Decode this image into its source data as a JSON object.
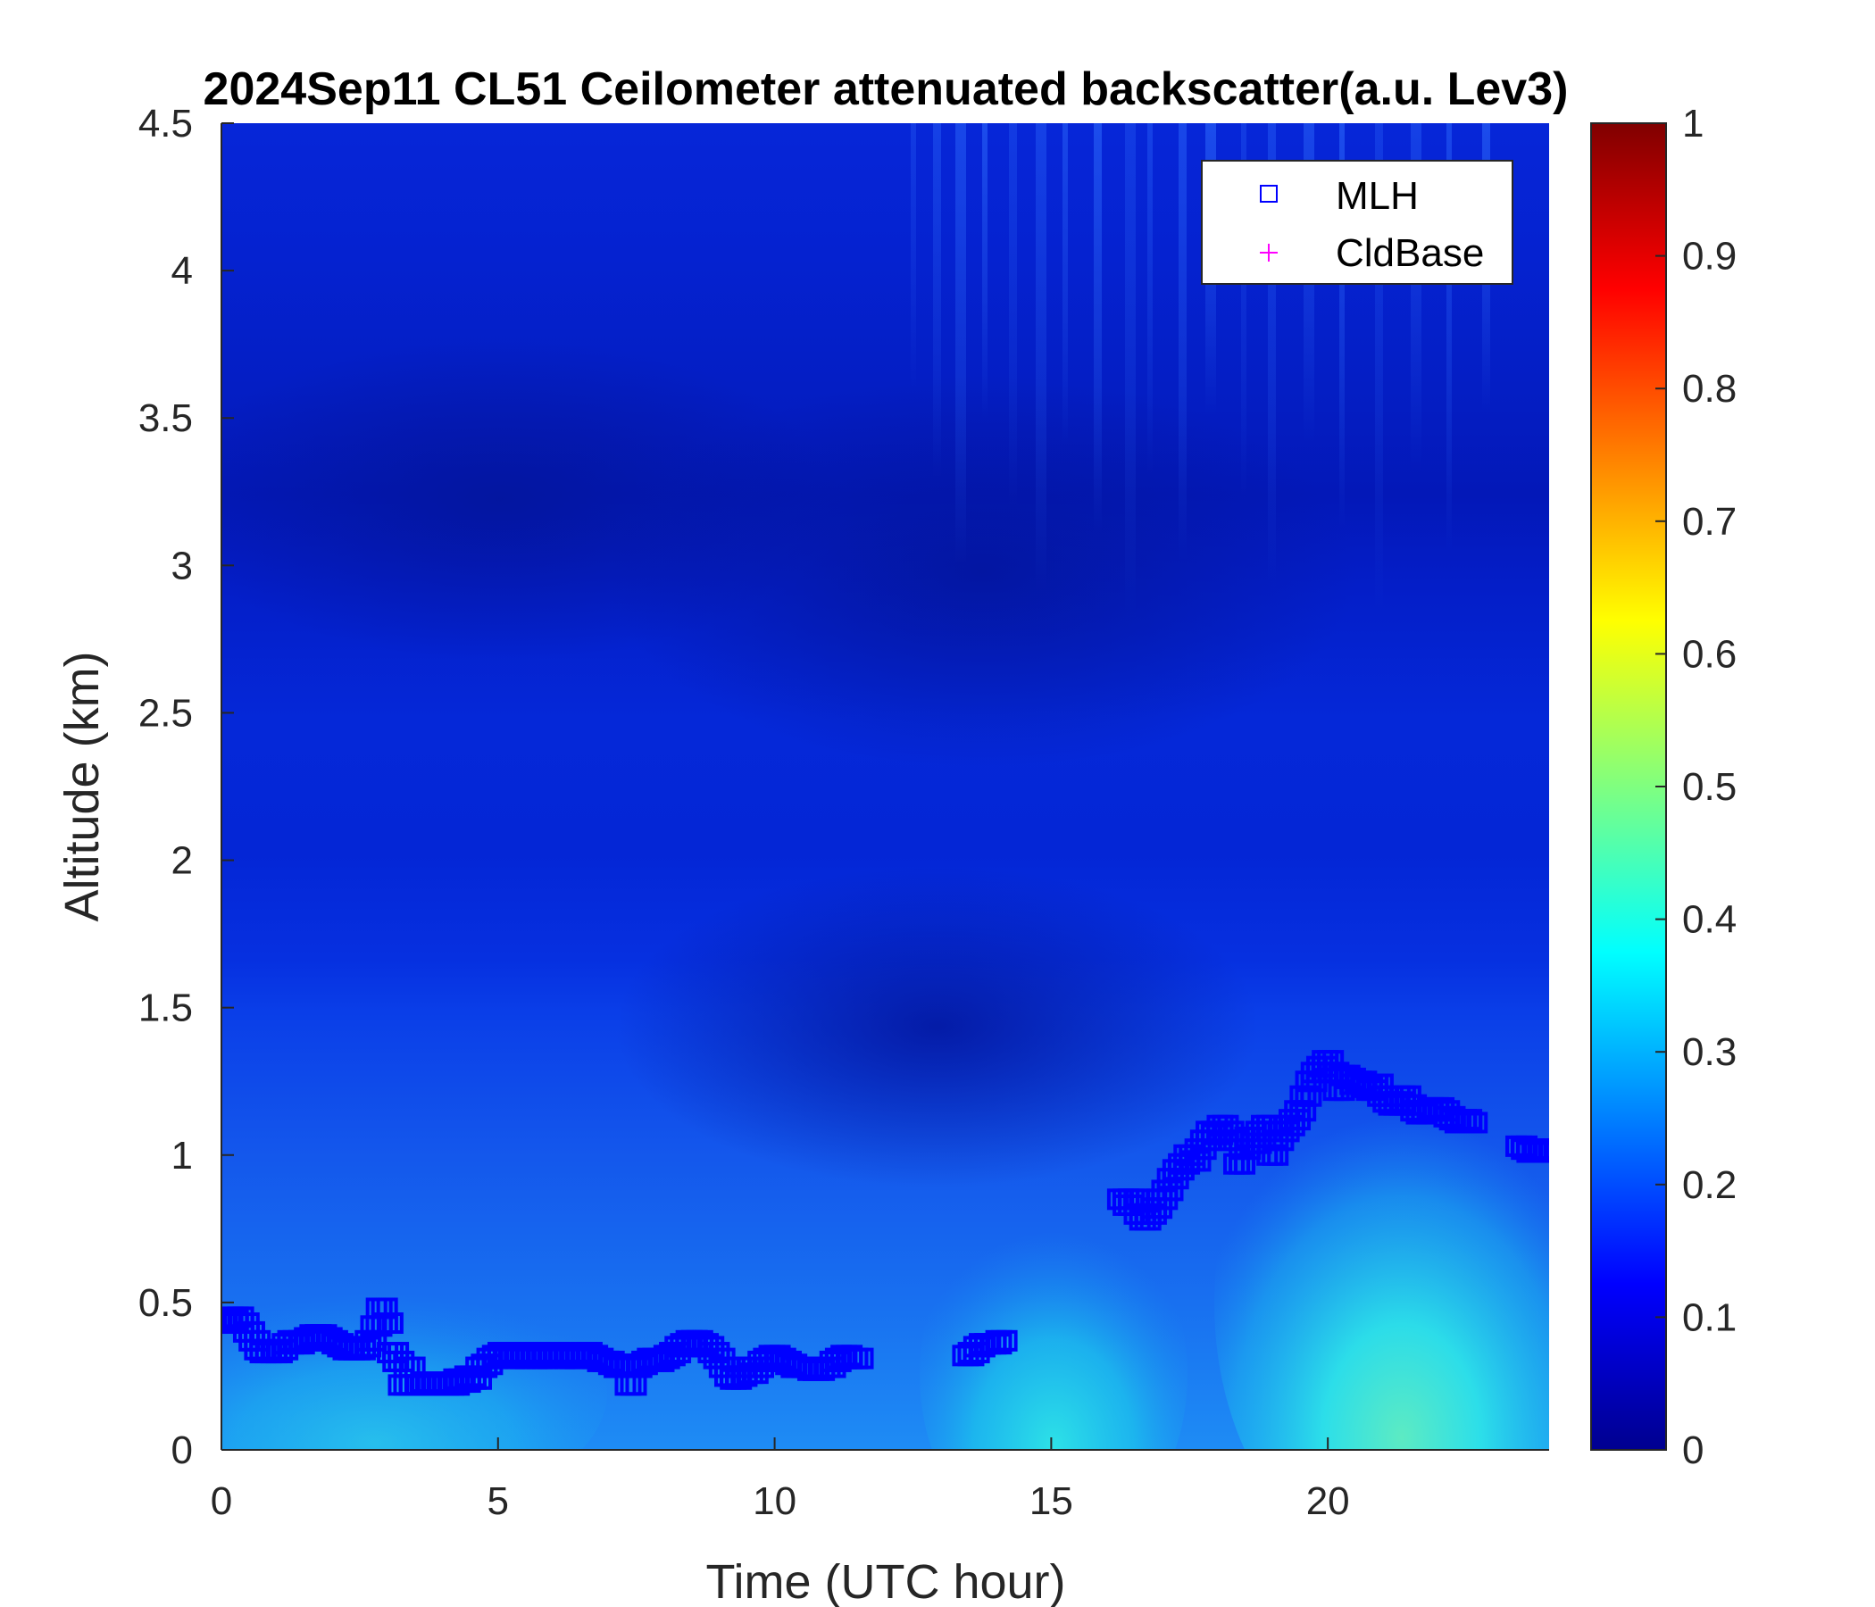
{
  "chart_data": {
    "type": "heatmap",
    "title": "2024Sep11 CL51 Ceilometer attenuated backscatter(a.u. Lev3)",
    "xlabel": "Time (UTC hour)",
    "ylabel": "Altitude (km)",
    "xlim": [
      0,
      24
    ],
    "ylim": [
      0,
      4.5
    ],
    "x_ticks": [
      "0",
      "5",
      "10",
      "15",
      "20"
    ],
    "y_ticks": [
      "0",
      "0.5",
      "1",
      "1.5",
      "2",
      "2.5",
      "3",
      "3.5",
      "4",
      "4.5"
    ],
    "colorbar": {
      "colormap": "jet",
      "limits": [
        0,
        1
      ],
      "ticks": [
        "0",
        "0.1",
        "0.2",
        "0.3",
        "0.4",
        "0.5",
        "0.6",
        "0.7",
        "0.8",
        "0.9",
        "1"
      ]
    },
    "legend": {
      "position": "top-right",
      "entries": [
        {
          "name": "MLH",
          "marker": "square",
          "color": "#0000ff"
        },
        {
          "name": "CldBase",
          "marker": "plus",
          "color": "#ff00ff"
        }
      ]
    },
    "series": [
      {
        "name": "MLH",
        "marker": "square",
        "color": "#0000ff",
        "points": [
          [
            0.0,
            0.43
          ],
          [
            0.1,
            0.44
          ],
          [
            0.2,
            0.44
          ],
          [
            0.3,
            0.45
          ],
          [
            0.4,
            0.43
          ],
          [
            0.5,
            0.4
          ],
          [
            0.6,
            0.37
          ],
          [
            0.7,
            0.34
          ],
          [
            0.8,
            0.33
          ],
          [
            0.9,
            0.33
          ],
          [
            1.0,
            0.33
          ],
          [
            1.1,
            0.34
          ],
          [
            1.2,
            0.36
          ],
          [
            1.3,
            0.37
          ],
          [
            1.4,
            0.36
          ],
          [
            1.5,
            0.37
          ],
          [
            1.6,
            0.38
          ],
          [
            1.7,
            0.39
          ],
          [
            1.8,
            0.39
          ],
          [
            1.9,
            0.38
          ],
          [
            2.0,
            0.37
          ],
          [
            2.1,
            0.36
          ],
          [
            2.2,
            0.35
          ],
          [
            2.3,
            0.34
          ],
          [
            2.4,
            0.34
          ],
          [
            2.5,
            0.34
          ],
          [
            2.6,
            0.35
          ],
          [
            2.7,
            0.37
          ],
          [
            2.8,
            0.42
          ],
          [
            2.9,
            0.48
          ],
          [
            3.0,
            0.43
          ],
          [
            3.1,
            0.33
          ],
          [
            3.2,
            0.3
          ],
          [
            3.3,
            0.22
          ],
          [
            3.4,
            0.28
          ],
          [
            3.5,
            0.22
          ],
          [
            3.6,
            0.22
          ],
          [
            3.7,
            0.23
          ],
          [
            3.8,
            0.22
          ],
          [
            3.9,
            0.22
          ],
          [
            4.0,
            0.22
          ],
          [
            4.1,
            0.23
          ],
          [
            4.2,
            0.22
          ],
          [
            4.3,
            0.24
          ],
          [
            4.4,
            0.23
          ],
          [
            4.5,
            0.25
          ],
          [
            4.6,
            0.24
          ],
          [
            4.7,
            0.28
          ],
          [
            4.8,
            0.29
          ],
          [
            4.9,
            0.31
          ],
          [
            5.0,
            0.32
          ],
          [
            5.1,
            0.33
          ],
          [
            5.2,
            0.33
          ],
          [
            5.3,
            0.32
          ],
          [
            5.4,
            0.31
          ],
          [
            5.5,
            0.32
          ],
          [
            5.6,
            0.33
          ],
          [
            5.7,
            0.32
          ],
          [
            5.8,
            0.31
          ],
          [
            5.9,
            0.32
          ],
          [
            6.0,
            0.33
          ],
          [
            6.1,
            0.33
          ],
          [
            6.2,
            0.32
          ],
          [
            6.3,
            0.31
          ],
          [
            6.4,
            0.32
          ],
          [
            6.5,
            0.32
          ],
          [
            6.6,
            0.33
          ],
          [
            6.7,
            0.32
          ],
          [
            6.8,
            0.31
          ],
          [
            6.9,
            0.3
          ],
          [
            7.0,
            0.3
          ],
          [
            7.1,
            0.29
          ],
          [
            7.2,
            0.28
          ],
          [
            7.3,
            0.29
          ],
          [
            7.4,
            0.22
          ],
          [
            7.5,
            0.28
          ],
          [
            7.6,
            0.29
          ],
          [
            7.7,
            0.3
          ],
          [
            7.8,
            0.31
          ],
          [
            7.9,
            0.3
          ],
          [
            8.0,
            0.31
          ],
          [
            8.1,
            0.32
          ],
          [
            8.2,
            0.33
          ],
          [
            8.3,
            0.35
          ],
          [
            8.4,
            0.36
          ],
          [
            8.5,
            0.37
          ],
          [
            8.6,
            0.37
          ],
          [
            8.7,
            0.36
          ],
          [
            8.8,
            0.35
          ],
          [
            8.9,
            0.33
          ],
          [
            9.0,
            0.31
          ],
          [
            9.1,
            0.28
          ],
          [
            9.2,
            0.25
          ],
          [
            9.3,
            0.24
          ],
          [
            9.4,
            0.25
          ],
          [
            9.5,
            0.28
          ],
          [
            9.6,
            0.26
          ],
          [
            9.7,
            0.28
          ],
          [
            9.8,
            0.3
          ],
          [
            9.9,
            0.31
          ],
          [
            10.0,
            0.32
          ],
          [
            10.1,
            0.31
          ],
          [
            10.2,
            0.3
          ],
          [
            10.3,
            0.29
          ],
          [
            10.4,
            0.28
          ],
          [
            10.5,
            0.28
          ],
          [
            10.6,
            0.28
          ],
          [
            10.7,
            0.27
          ],
          [
            10.8,
            0.27
          ],
          [
            10.9,
            0.28
          ],
          [
            11.0,
            0.28
          ],
          [
            11.1,
            0.3
          ],
          [
            11.2,
            0.31
          ],
          [
            11.3,
            0.32
          ],
          [
            11.4,
            0.31
          ],
          [
            11.5,
            0.31
          ],
          [
            13.5,
            0.32
          ],
          [
            13.6,
            0.33
          ],
          [
            13.7,
            0.35
          ],
          [
            13.8,
            0.36
          ],
          [
            13.9,
            0.36
          ],
          [
            14.0,
            0.36
          ],
          [
            14.1,
            0.37
          ],
          [
            16.3,
            0.85
          ],
          [
            16.4,
            0.83
          ],
          [
            16.5,
            0.85
          ],
          [
            16.6,
            0.8
          ],
          [
            16.7,
            0.78
          ],
          [
            16.8,
            0.8
          ],
          [
            16.9,
            0.82
          ],
          [
            17.0,
            0.85
          ],
          [
            17.1,
            0.88
          ],
          [
            17.2,
            0.92
          ],
          [
            17.3,
            0.95
          ],
          [
            17.4,
            0.97
          ],
          [
            17.5,
            1.0
          ],
          [
            17.6,
            0.98
          ],
          [
            17.7,
            1.02
          ],
          [
            17.8,
            1.05
          ],
          [
            17.9,
            1.08
          ],
          [
            18.0,
            1.07
          ],
          [
            18.1,
            1.1
          ],
          [
            18.2,
            1.08
          ],
          [
            18.3,
            1.05
          ],
          [
            18.4,
            0.97
          ],
          [
            18.5,
            1.02
          ],
          [
            18.6,
            1.06
          ],
          [
            18.7,
            1.04
          ],
          [
            18.8,
            1.08
          ],
          [
            18.9,
            1.1
          ],
          [
            19.0,
            1.0
          ],
          [
            19.1,
            1.05
          ],
          [
            19.2,
            1.08
          ],
          [
            19.3,
            1.1
          ],
          [
            19.4,
            1.12
          ],
          [
            19.5,
            1.15
          ],
          [
            19.6,
            1.2
          ],
          [
            19.7,
            1.25
          ],
          [
            19.8,
            1.28
          ],
          [
            19.9,
            1.3
          ],
          [
            20.0,
            1.32
          ],
          [
            20.1,
            1.28
          ],
          [
            20.2,
            1.22
          ],
          [
            20.3,
            1.27
          ],
          [
            20.4,
            1.26
          ],
          [
            20.5,
            1.24
          ],
          [
            20.6,
            1.25
          ],
          [
            20.7,
            1.23
          ],
          [
            20.8,
            1.22
          ],
          [
            20.9,
            1.24
          ],
          [
            21.0,
            1.2
          ],
          [
            21.1,
            1.18
          ],
          [
            21.2,
            1.17
          ],
          [
            21.3,
            1.18
          ],
          [
            21.4,
            1.2
          ],
          [
            21.5,
            1.17
          ],
          [
            21.6,
            1.15
          ],
          [
            21.7,
            1.14
          ],
          [
            21.8,
            1.15
          ],
          [
            21.9,
            1.16
          ],
          [
            22.0,
            1.16
          ],
          [
            22.1,
            1.15
          ],
          [
            22.2,
            1.13
          ],
          [
            22.3,
            1.12
          ],
          [
            22.4,
            1.11
          ],
          [
            22.5,
            1.12
          ],
          [
            22.6,
            1.11
          ],
          [
            23.5,
            1.03
          ],
          [
            23.6,
            1.02
          ],
          [
            23.7,
            1.01
          ],
          [
            23.8,
            1.01
          ],
          [
            23.9,
            1.02
          ],
          [
            24.0,
            1.02
          ]
        ]
      },
      {
        "name": "CldBase",
        "marker": "plus",
        "color": "#ff00ff",
        "points": []
      }
    ]
  }
}
